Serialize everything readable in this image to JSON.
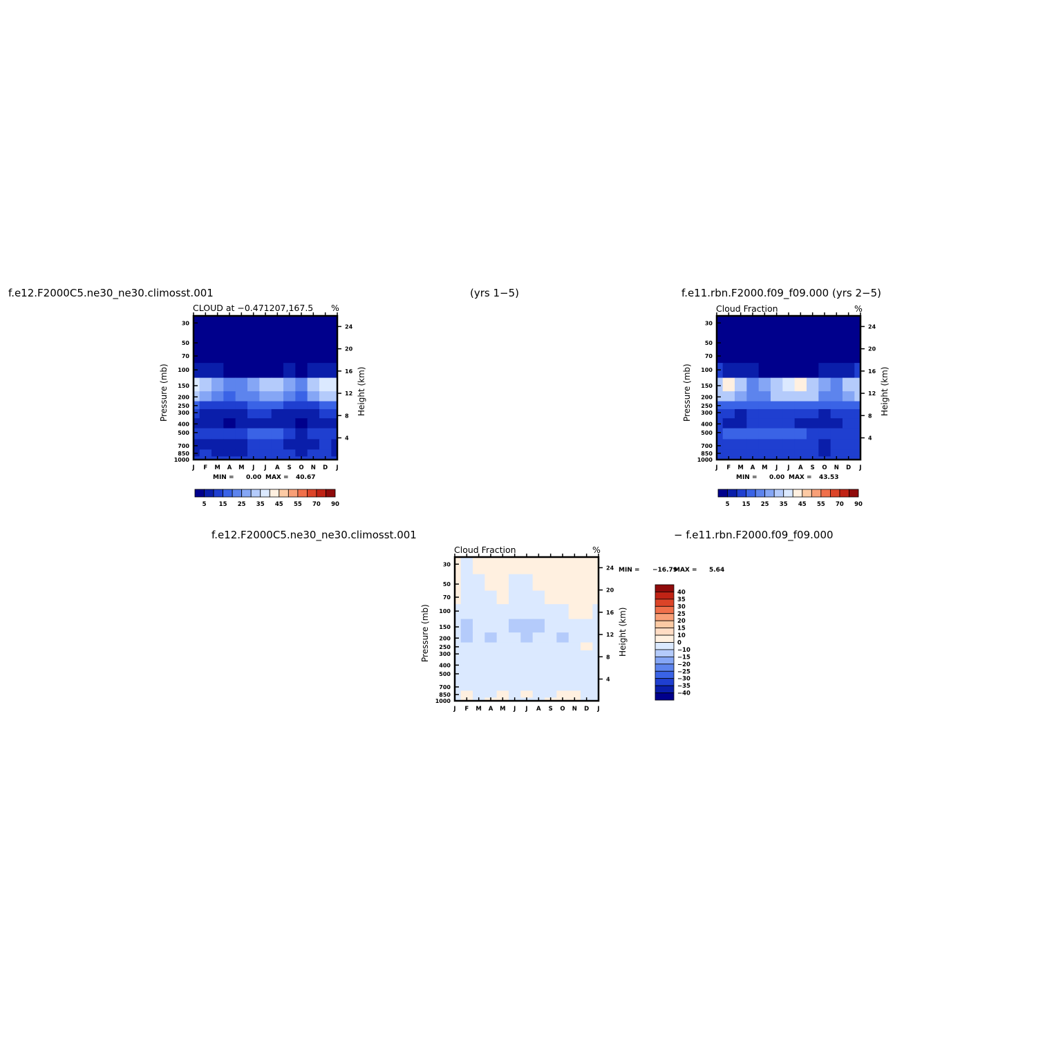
{
  "headers": {
    "top_left": "f.e12.F2000C5.ne30_ne30.climosst.001",
    "top_center": "(yrs 1−5)",
    "top_right": "f.e11.rbn.F2000.f09_f09.000 (yrs 2−5)",
    "bottom_left": "f.e12.F2000C5.ne30_ne30.climosst.001",
    "bottom_right": "− f.e11.rbn.F2000.f09_f09.000"
  },
  "chart_data": [
    {
      "id": "panel1",
      "type": "heatmap",
      "title": "CLOUD at −0.471207,167.5",
      "units": "%",
      "ylabel": "Pressure (mb)",
      "y2label": "Height (km)",
      "yticks": [
        "30",
        "50",
        "70",
        "100",
        "150",
        "200",
        "250",
        "300",
        "400",
        "500",
        "700",
        "850",
        "1000"
      ],
      "y2ticks": [
        "24",
        "20",
        "16",
        "12",
        "8",
        "4"
      ],
      "xticks": [
        "J",
        "F",
        "M",
        "A",
        "M",
        "J",
        "J",
        "A",
        "S",
        "O",
        "N",
        "D",
        "J"
      ],
      "min_label": "MIN =",
      "min_value": "0.00",
      "max_label": "MAX =",
      "max_value": "40.67",
      "colorbar_labels": [
        "5",
        "15",
        "25",
        "35",
        "45",
        "55",
        "70",
        "90"
      ],
      "colorbar_colors": [
        "#00008c",
        "#0a1eaa",
        "#1f3fd0",
        "#3a63e6",
        "#5d84ed",
        "#85a6f5",
        "#b4cbfb",
        "#dbe9ff",
        "#fff0e0",
        "#fccaa4",
        "#f89f77",
        "#f0704b",
        "#dc4428",
        "#c02315",
        "#8f0b0b"
      ],
      "rows": [
        [
          0,
          0,
          0,
          0,
          0,
          0,
          0,
          0,
          0,
          0,
          0,
          0,
          0
        ],
        [
          0,
          0,
          0,
          0,
          0,
          0,
          0,
          0,
          0,
          0,
          0,
          0,
          0
        ],
        [
          2,
          2,
          1,
          0,
          0,
          0,
          0,
          0,
          1,
          1,
          1,
          1,
          2
        ],
        [
          8,
          9,
          7,
          4,
          4,
          3,
          3,
          4,
          5,
          4,
          7,
          9,
          8
        ],
        [
          37,
          30,
          26,
          20,
          22,
          26,
          30,
          30,
          26,
          20,
          30,
          35,
          37
        ],
        [
          32,
          26,
          22,
          17,
          20,
          24,
          28,
          28,
          24,
          18,
          26,
          30,
          32
        ],
        [
          16,
          14,
          13,
          13,
          14,
          15,
          15,
          15,
          14,
          13,
          14,
          15,
          16
        ],
        [
          10,
          9,
          8,
          6,
          9,
          10,
          10,
          9,
          9,
          6,
          8,
          10,
          10
        ],
        [
          8,
          7,
          7,
          4,
          6,
          7,
          7,
          7,
          6,
          3,
          5,
          7,
          8
        ],
        [
          10,
          11,
          13,
          12,
          13,
          16,
          18,
          16,
          11,
          9,
          11,
          12,
          10
        ],
        [
          5,
          9,
          9,
          5,
          8,
          10,
          10,
          10,
          9,
          8,
          9,
          10,
          5
        ],
        [
          9,
          10,
          9,
          7,
          9,
          10,
          10,
          10,
          10,
          9,
          10,
          10,
          9
        ],
        [
          12,
          12,
          12,
          12,
          12,
          12,
          12,
          12,
          12,
          12,
          12,
          12,
          12
        ]
      ]
    },
    {
      "id": "panel2",
      "type": "heatmap",
      "title": "Cloud Fraction",
      "units": "%",
      "ylabel": "Pressure (mb)",
      "y2label": "Height (km)",
      "yticks": [
        "30",
        "50",
        "70",
        "100",
        "150",
        "200",
        "250",
        "300",
        "400",
        "500",
        "700",
        "850",
        "1000"
      ],
      "y2ticks": [
        "24",
        "20",
        "16",
        "12",
        "8",
        "4"
      ],
      "xticks": [
        "J",
        "F",
        "M",
        "A",
        "M",
        "J",
        "J",
        "A",
        "S",
        "O",
        "N",
        "D",
        "J"
      ],
      "min_label": "MIN =",
      "min_value": "0.00",
      "max_label": "MAX =",
      "max_value": "43.53",
      "colorbar_labels": [
        "5",
        "15",
        "25",
        "35",
        "45",
        "55",
        "70",
        "90"
      ],
      "colorbar_colors": [
        "#00008c",
        "#0a1eaa",
        "#1f3fd0",
        "#3a63e6",
        "#5d84ed",
        "#85a6f5",
        "#b4cbfb",
        "#dbe9ff",
        "#fff0e0",
        "#fccaa4",
        "#f89f77",
        "#f0704b",
        "#dc4428",
        "#c02315",
        "#8f0b0b"
      ],
      "rows": [
        [
          0,
          0,
          0,
          0,
          0,
          0,
          0,
          0,
          0,
          0,
          0,
          0,
          0
        ],
        [
          0,
          0,
          0,
          0,
          0,
          0,
          0,
          0,
          0,
          0,
          0,
          0,
          0
        ],
        [
          1,
          1,
          0,
          0,
          0,
          0,
          0,
          0,
          0,
          0,
          1,
          1,
          1
        ],
        [
          10,
          9,
          7,
          5,
          4,
          4,
          4,
          4,
          4,
          5,
          7,
          9,
          10
        ],
        [
          34,
          43,
          30,
          24,
          26,
          32,
          36,
          40,
          34,
          26,
          24,
          30,
          34
        ],
        [
          30,
          34,
          26,
          22,
          24,
          30,
          34,
          32,
          30,
          24,
          22,
          28,
          30
        ],
        [
          17,
          18,
          16,
          15,
          16,
          18,
          18,
          18,
          17,
          16,
          16,
          17,
          17
        ],
        [
          10,
          10,
          9,
          10,
          12,
          12,
          11,
          11,
          10,
          9,
          10,
          11,
          10
        ],
        [
          10,
          8,
          8,
          11,
          11,
          10,
          10,
          9,
          8,
          8,
          9,
          10,
          10
        ],
        [
          14,
          15,
          16,
          15,
          17,
          18,
          18,
          17,
          13,
          12,
          13,
          14,
          14
        ],
        [
          12,
          13,
          12,
          12,
          12,
          13,
          13,
          12,
          10,
          9,
          10,
          11,
          12
        ],
        [
          12,
          12,
          12,
          12,
          12,
          12,
          11,
          11,
          10,
          9,
          10,
          11,
          12
        ],
        [
          12,
          12,
          12,
          12,
          12,
          12,
          12,
          12,
          12,
          12,
          12,
          12,
          12
        ]
      ]
    },
    {
      "id": "panel3",
      "type": "heatmap",
      "title": "Cloud Fraction",
      "units": "%",
      "ylabel": "Pressure (mb)",
      "y2label": "Height (km)",
      "yticks": [
        "30",
        "50",
        "70",
        "100",
        "150",
        "200",
        "250",
        "300",
        "400",
        "500",
        "700",
        "850",
        "1000"
      ],
      "y2ticks": [
        "24",
        "20",
        "16",
        "12",
        "8",
        "4"
      ],
      "xticks": [
        "J",
        "F",
        "M",
        "A",
        "M",
        "J",
        "J",
        "A",
        "S",
        "O",
        "N",
        "D",
        "J"
      ],
      "min_label": "MIN =",
      "min_value": "−16.79",
      "max_label": "MAX =",
      "max_value": "5.64",
      "colorbar_labels": [
        "40",
        "35",
        "30",
        "25",
        "20",
        "15",
        "10",
        "0",
        "−10",
        "−15",
        "−20",
        "−25",
        "−30",
        "−35",
        "−40"
      ],
      "colorbar_colors": [
        "#8f0b0b",
        "#c02315",
        "#dc4428",
        "#f0704b",
        "#f89f77",
        "#fccaa4",
        "#ffdcc4",
        "#fff0e0",
        "#dbe9ff",
        "#b4cbfb",
        "#85a6f5",
        "#5d84ed",
        "#3a63e6",
        "#1f3fd0",
        "#0a1eaa",
        "#00008c"
      ],
      "rows": [
        [
          2,
          -2,
          2,
          2,
          2,
          2,
          2,
          2,
          2,
          2,
          2,
          2,
          2
        ],
        [
          2,
          -2,
          -2,
          2,
          2,
          -2,
          -2,
          2,
          2,
          2,
          2,
          2,
          2
        ],
        [
          2,
          -2,
          -2,
          -2,
          2,
          -2,
          -2,
          -2,
          2,
          2,
          2,
          2,
          2
        ],
        [
          -2,
          -2,
          -2,
          -2,
          -2,
          -2,
          -2,
          -2,
          -2,
          -2,
          2,
          2,
          -2
        ],
        [
          -2,
          -12,
          -2,
          -2,
          -2,
          -12,
          -14,
          -12,
          -2,
          -2,
          -2,
          -2,
          -2
        ],
        [
          -2,
          -12,
          -2,
          -12,
          -2,
          -2,
          -12,
          -2,
          -2,
          -12,
          -2,
          -2,
          -2
        ],
        [
          -2,
          -2,
          -2,
          -2,
          -2,
          -2,
          -2,
          -2,
          -2,
          -2,
          -2,
          2,
          -2
        ],
        [
          -2,
          -2,
          -2,
          -2,
          -2,
          -2,
          -2,
          -2,
          -2,
          -2,
          -2,
          -2,
          -2
        ],
        [
          -2,
          -2,
          -2,
          -2,
          -2,
          -2,
          -2,
          -2,
          -2,
          -2,
          -2,
          -2,
          -2
        ],
        [
          -2,
          -2,
          -2,
          -2,
          -2,
          -2,
          -2,
          -2,
          -2,
          -2,
          -2,
          -2,
          -2
        ],
        [
          -2,
          -2,
          -2,
          -2,
          -2,
          -2,
          -2,
          -2,
          -2,
          -2,
          -2,
          -2,
          -2
        ],
        [
          -2,
          2,
          -2,
          -2,
          2,
          -2,
          2,
          -2,
          -2,
          2,
          2,
          -2,
          -2
        ],
        [
          -2,
          2,
          -2,
          2,
          2,
          -2,
          -2,
          -2,
          2,
          2,
          2,
          -2,
          -2
        ]
      ]
    }
  ]
}
